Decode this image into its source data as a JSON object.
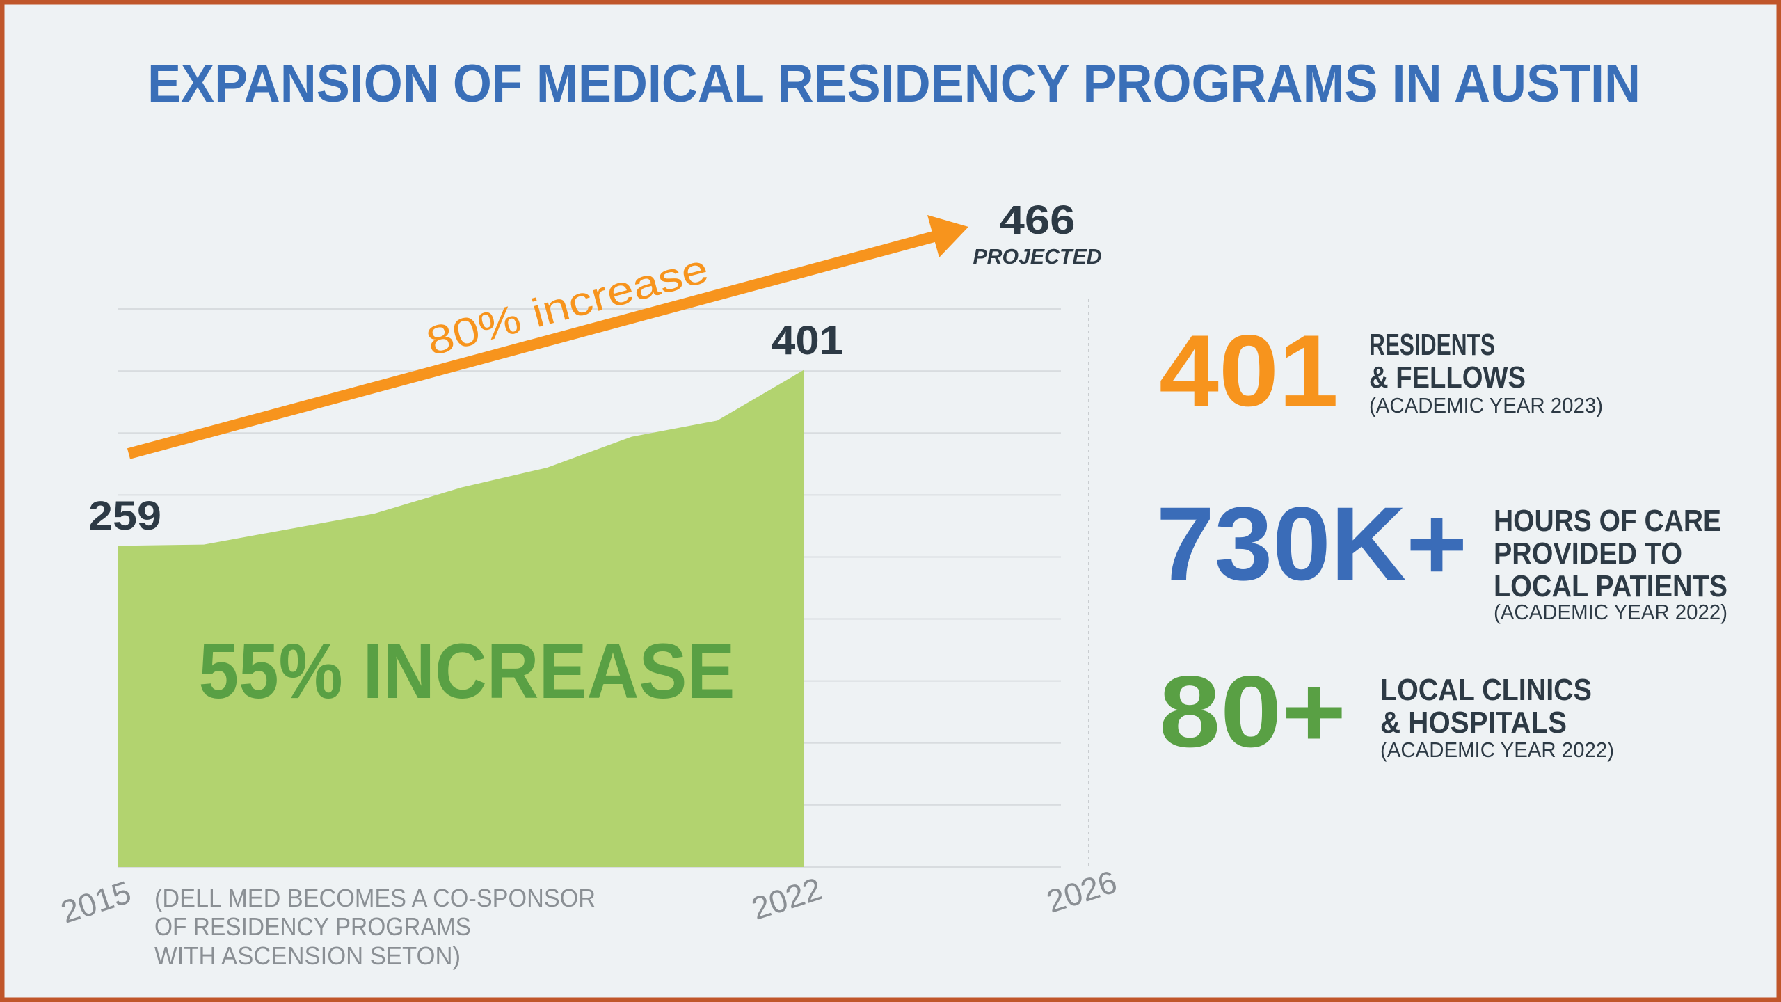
{
  "title": "EXPANSION OF MEDICAL RESIDENCY PROGRAMS IN AUSTIN",
  "colors": {
    "background": "#eef2f4",
    "border": "#c0562a",
    "title": "#3a6fb8",
    "orange": "#f7941d",
    "area": "#b2d36f",
    "green_text": "#59a044",
    "blue": "#3a6cb8",
    "dark_text": "#2d3a45",
    "axis_label": "#8a8f94",
    "gridline": "#d8dcdf"
  },
  "chart_data": {
    "type": "area",
    "title": "",
    "xlabel": "",
    "ylabel": "",
    "x": [
      2015,
      2016,
      2017,
      2018,
      2019,
      2020,
      2021,
      2022
    ],
    "values": [
      259,
      260,
      285,
      306,
      322,
      347,
      360,
      401
    ],
    "ylim": [
      0,
      450
    ],
    "grid": true,
    "x_tick_labels": [
      "2015",
      "2022",
      "2026"
    ],
    "start_label": "259",
    "end_label": "401",
    "projected_value": "466",
    "projected_label": "PROJECTED",
    "arrow_label": "80% increase",
    "area_label": "55% INCREASE",
    "annotation_lines": [
      "(DELL MED BECOMES A CO-SPONSOR",
      "OF RESIDENCY PROGRAMS",
      "WITH ASCENSION SETON)"
    ]
  },
  "stats": [
    {
      "value": "401",
      "lines": [
        "RESIDENTS",
        "& FELLOWS"
      ],
      "note": "(ACADEMIC YEAR 2023)"
    },
    {
      "value": "730K+",
      "lines": [
        "HOURS OF CARE",
        "PROVIDED TO",
        "LOCAL PATIENTS"
      ],
      "note": "(ACADEMIC YEAR 2022)"
    },
    {
      "value": "80+",
      "lines": [
        "LOCAL CLINICS",
        "& HOSPITALS"
      ],
      "note": "(ACADEMIC YEAR 2022)"
    }
  ]
}
